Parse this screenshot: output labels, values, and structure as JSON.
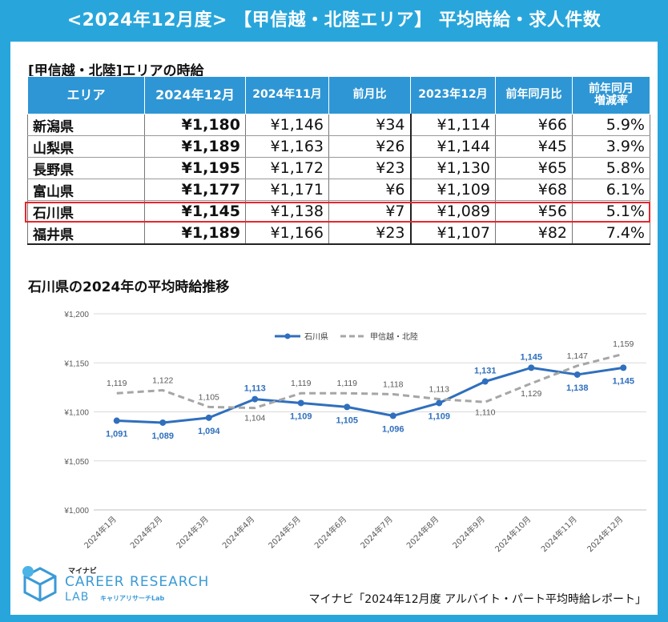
{
  "header": {
    "title": "<2024年12月度> 【甲信越・北陸エリア】 平均時給・求人件数"
  },
  "table": {
    "title": "[甲信越・北陸]エリアの時給",
    "headers": [
      "エリア",
      "2024年12月",
      "2024年11月",
      "前月比",
      "2023年12月",
      "前年同月比",
      "前年同月増減率"
    ],
    "header_rate_line1": "前年同月",
    "header_rate_line2": "増減率",
    "rows": [
      {
        "area": "新潟県",
        "dec2024": "¥1,180",
        "nov2024": "¥1,146",
        "mom": "¥34",
        "dec2023": "¥1,114",
        "yoy": "¥66",
        "rate": "5.9%"
      },
      {
        "area": "山梨県",
        "dec2024": "¥1,189",
        "nov2024": "¥1,163",
        "mom": "¥26",
        "dec2023": "¥1,144",
        "yoy": "¥45",
        "rate": "3.9%"
      },
      {
        "area": "長野県",
        "dec2024": "¥1,195",
        "nov2024": "¥1,172",
        "mom": "¥23",
        "dec2023": "¥1,130",
        "yoy": "¥65",
        "rate": "5.8%"
      },
      {
        "area": "富山県",
        "dec2024": "¥1,177",
        "nov2024": "¥1,171",
        "mom": "¥6",
        "dec2023": "¥1,109",
        "yoy": "¥68",
        "rate": "6.1%"
      },
      {
        "area": "石川県",
        "dec2024": "¥1,145",
        "nov2024": "¥1,138",
        "mom": "¥7",
        "dec2023": "¥1,089",
        "yoy": "¥56",
        "rate": "5.1%"
      },
      {
        "area": "福井県",
        "dec2024": "¥1,189",
        "nov2024": "¥1,166",
        "mom": "¥23",
        "dec2023": "¥1,107",
        "yoy": "¥82",
        "rate": "7.4%"
      }
    ],
    "highlight_area": "石川県"
  },
  "chart_data": {
    "type": "line",
    "title": "石川県の2024年の平均時給推移",
    "categories": [
      "2024年1月",
      "2024年2月",
      "2024年3月",
      "2024年4月",
      "2024年5月",
      "2024年6月",
      "2024年7月",
      "2024年8月",
      "2024年9月",
      "2024年10月",
      "2024年11月",
      "2024年12月"
    ],
    "series": [
      {
        "name": "石川県",
        "values": [
          1091,
          1089,
          1094,
          1113,
          1109,
          1105,
          1096,
          1109,
          1131,
          1145,
          1138,
          1145
        ],
        "color": "#2f6fbd",
        "style": "solid"
      },
      {
        "name": "甲信越・北陸",
        "values": [
          1119,
          1122,
          1105,
          1104,
          1119,
          1119,
          1118,
          1113,
          1110,
          1129,
          1147,
          1159
        ],
        "color": "#a6a6a6",
        "style": "dashed"
      }
    ],
    "ylim": [
      1000,
      1200
    ],
    "yticks": [
      1000,
      1050,
      1100,
      1150,
      1200
    ],
    "ytick_labels": [
      "¥1,000",
      "¥1,050",
      "¥1,100",
      "¥1,150",
      "¥1,200"
    ],
    "grid": true,
    "legend": "top-center"
  },
  "footer": {
    "logo_small": "マイナビ",
    "logo_main": "CAREER RESEARCH",
    "logo_lab": "LAB",
    "logo_sub": "キャリアリサーチLab",
    "source": "マイナビ「2024年12月度 アルバイト・パート平均時給レポート」"
  }
}
